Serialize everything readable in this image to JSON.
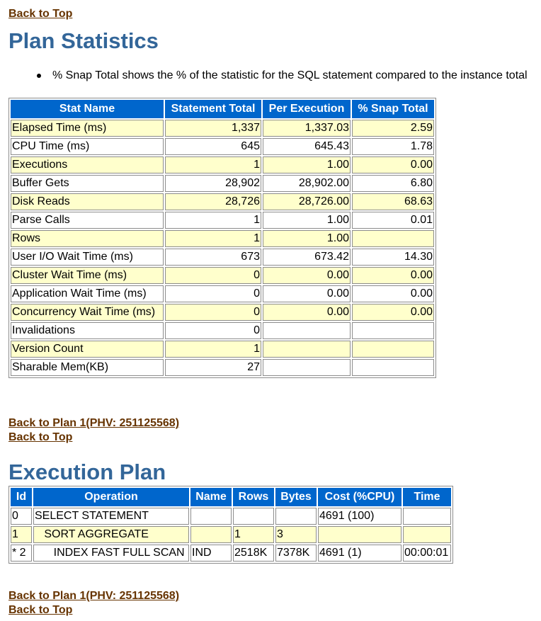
{
  "links": {
    "back_to_top": "Back to Top",
    "back_to_plan": "Back to Plan 1(PHV: 251125568)"
  },
  "plan_statistics": {
    "title": "Plan Statistics",
    "note": "% Snap Total shows the % of the statistic for the SQL statement compared to the instance total",
    "headers": [
      "Stat Name",
      "Statement Total",
      "Per Execution",
      "% Snap Total"
    ],
    "rows": [
      [
        "Elapsed Time (ms)",
        "1,337",
        "1,337.03",
        "2.59"
      ],
      [
        "CPU Time (ms)",
        "645",
        "645.43",
        "1.78"
      ],
      [
        "Executions",
        "1",
        "1.00",
        "0.00"
      ],
      [
        "Buffer Gets",
        "28,902",
        "28,902.00",
        "6.80"
      ],
      [
        "Disk Reads",
        "28,726",
        "28,726.00",
        "68.63"
      ],
      [
        "Parse Calls",
        "1",
        "1.00",
        "0.01"
      ],
      [
        "Rows",
        "1",
        "1.00",
        ""
      ],
      [
        "User I/O Wait Time (ms)",
        "673",
        "673.42",
        "14.30"
      ],
      [
        "Cluster Wait Time (ms)",
        "0",
        "0.00",
        "0.00"
      ],
      [
        "Application Wait Time (ms)",
        "0",
        "0.00",
        "0.00"
      ],
      [
        "Concurrency Wait Time (ms)",
        "0",
        "0.00",
        "0.00"
      ],
      [
        "Invalidations",
        "0",
        "",
        ""
      ],
      [
        "Version Count",
        "1",
        "",
        ""
      ],
      [
        "Sharable Mem(KB)",
        "27",
        "",
        ""
      ]
    ]
  },
  "execution_plan": {
    "title": "Execution Plan",
    "headers": [
      "Id",
      "Operation",
      "Name",
      "Rows",
      "Bytes",
      "Cost (%CPU)",
      "Time"
    ],
    "rows": [
      [
        "0",
        "SELECT STATEMENT",
        "",
        "",
        "",
        "4691 (100)",
        ""
      ],
      [
        "1",
        "   SORT AGGREGATE",
        "",
        "1",
        "3",
        "",
        ""
      ],
      [
        "* 2",
        "      INDEX FAST FULL SCAN",
        "IND",
        "2518K",
        "7378K",
        "4691 (1)",
        "00:00:01"
      ]
    ]
  },
  "colors": {
    "header_bg": "#0066cc",
    "title": "#336699",
    "link": "#663300",
    "alt_row": "#ffffcc"
  }
}
